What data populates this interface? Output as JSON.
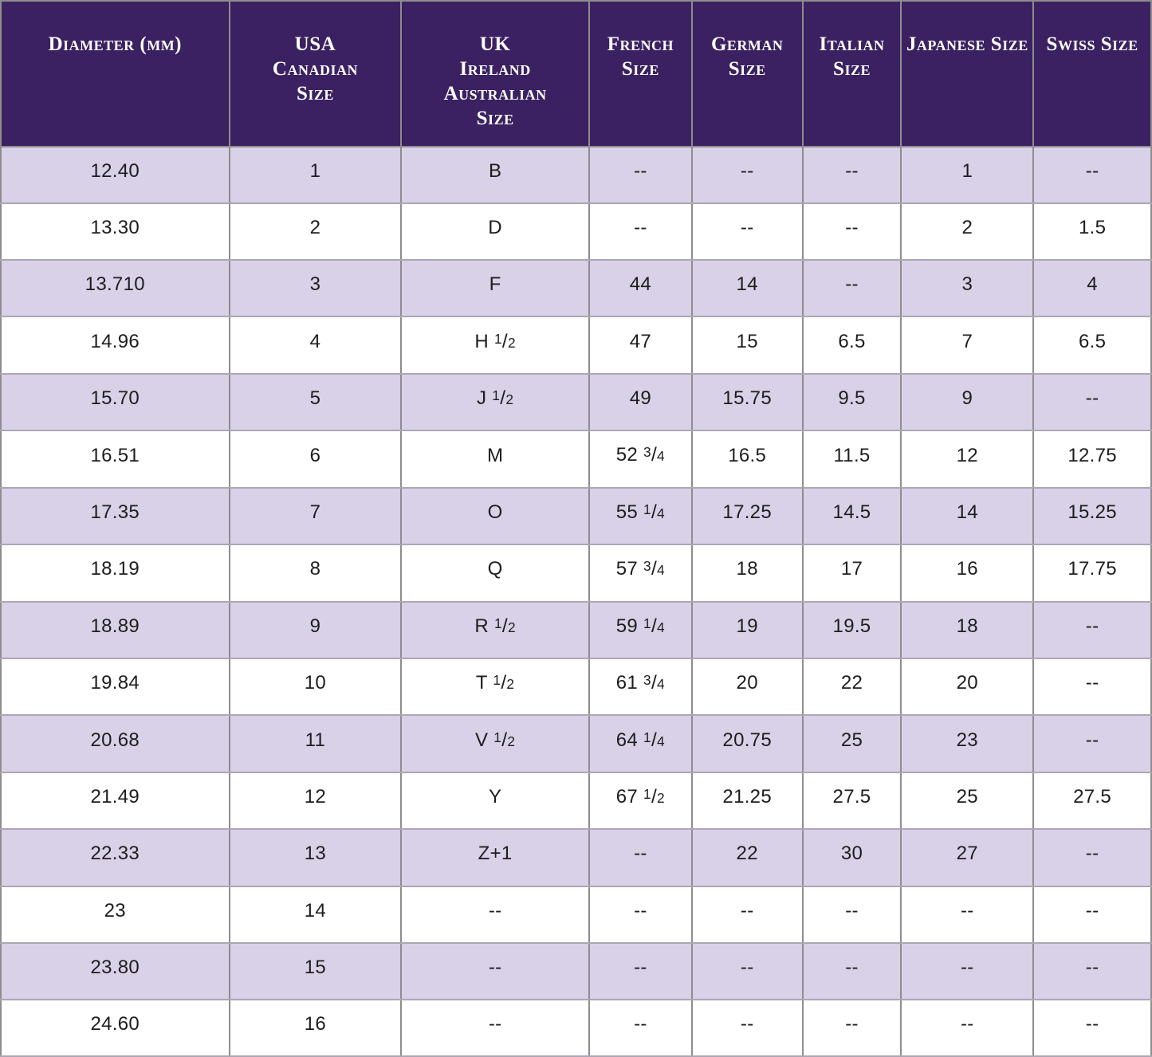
{
  "colors": {
    "header_background": "#3b2161",
    "header_text": "#ffffff",
    "stripe_row_background": "#d8d1e7",
    "plain_row_background": "#ffffff",
    "cell_text": "#1d1d1d",
    "column_border": "#8d8d8d",
    "row_border": "#aca6b6"
  },
  "chart_data": {
    "type": "table",
    "columns": [
      {
        "id": "diameter-mm",
        "label": "Diameter (mm)",
        "lines": [
          "Diameter (mm)"
        ]
      },
      {
        "id": "usa-canadian",
        "label": "USA Canadian Size",
        "lines": [
          "USA",
          "Canadian",
          "Size"
        ]
      },
      {
        "id": "uk-ireland-au",
        "label": "UK Ireland Australian Size",
        "lines": [
          "UK",
          "Ireland",
          "Australian",
          "Size"
        ]
      },
      {
        "id": "french",
        "label": "French Size",
        "lines": [
          "French",
          "Size"
        ]
      },
      {
        "id": "german",
        "label": "German Size",
        "lines": [
          "German",
          "Size"
        ]
      },
      {
        "id": "italian",
        "label": "Italian Size",
        "lines": [
          "Italian",
          "Size"
        ]
      },
      {
        "id": "japanese",
        "label": "Japanese Size",
        "lines": [
          "Japanese Size"
        ]
      },
      {
        "id": "swiss",
        "label": "Swiss Size",
        "lines": [
          "Swiss Size"
        ]
      }
    ],
    "rows": [
      [
        "12.40",
        "1",
        "B",
        "--",
        "--",
        "--",
        "1",
        "--"
      ],
      [
        "13.30",
        "2",
        "D",
        "--",
        "--",
        "--",
        "2",
        "1.5"
      ],
      [
        "13.710",
        "3",
        "F",
        "44",
        "14",
        "--",
        "3",
        "4"
      ],
      [
        "14.96",
        "4",
        "H 1/2",
        "47",
        "15",
        "6.5",
        "7",
        "6.5"
      ],
      [
        "15.70",
        "5",
        "J 1/2",
        "49",
        "15.75",
        "9.5",
        "9",
        "--"
      ],
      [
        "16.51",
        "6",
        "M",
        "52 3/4",
        "16.5",
        "11.5",
        "12",
        "12.75"
      ],
      [
        "17.35",
        "7",
        "O",
        "55 1/4",
        "17.25",
        "14.5",
        "14",
        "15.25"
      ],
      [
        "18.19",
        "8",
        "Q",
        "57 3/4",
        "18",
        "17",
        "16",
        "17.75"
      ],
      [
        "18.89",
        "9",
        "R 1/2",
        "59 1/4",
        "19",
        "19.5",
        "18",
        "--"
      ],
      [
        "19.84",
        "10",
        "T 1/2",
        "61 3/4",
        "20",
        "22",
        "20",
        "--"
      ],
      [
        "20.68",
        "11",
        "V 1/2",
        "64 1/4",
        "20.75",
        "25",
        "23",
        "--"
      ],
      [
        "21.49",
        "12",
        "Y",
        "67 1/2",
        "21.25",
        "27.5",
        "25",
        "27.5"
      ],
      [
        "22.33",
        "13",
        "Z+1",
        "--",
        "22",
        "30",
        "27",
        "--"
      ],
      [
        "23",
        "14",
        "--",
        "--",
        "--",
        "--",
        "--",
        "--"
      ],
      [
        "23.80",
        "15",
        "--",
        "--",
        "--",
        "--",
        "--",
        "--"
      ],
      [
        "24.60",
        "16",
        "--",
        "--",
        "--",
        "--",
        "--",
        "--"
      ]
    ]
  }
}
